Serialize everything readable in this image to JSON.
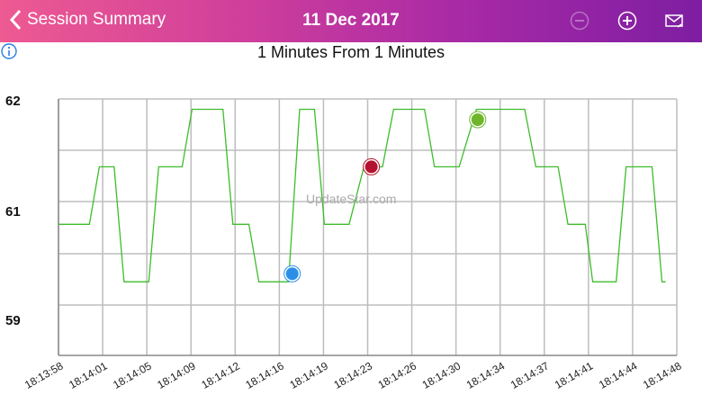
{
  "header": {
    "back_label": "Session Summary",
    "title": "11 Dec 2017",
    "icons": [
      "minus-circle-icon",
      "plus-circle-icon",
      "mail-export-icon"
    ]
  },
  "subtitle": "1 Minutes  From 1 Minutes",
  "watermark": "UpdateStar.com",
  "colors": {
    "line": "#3dbd2a",
    "grid": "#bdbdbd",
    "blue": "#2b8fe8",
    "red": "#b3132e",
    "green": "#6fb62c"
  },
  "chart_data": {
    "type": "line",
    "title": "1 Minutes  From 1 Minutes",
    "xlabel": "",
    "ylabel": "",
    "y_tick_labels": [
      "62",
      "61",
      "59"
    ],
    "x_tick_labels": [
      "18:13:58",
      "18:14:01",
      "18:14:05",
      "18:14:09",
      "18:14:12",
      "18:14:16",
      "18:14:19",
      "18:14:23",
      "18:14:26",
      "18:14:30",
      "18:14:34",
      "18:14:37",
      "18:14:41",
      "18:14:44",
      "18:14:48"
    ],
    "xlim": [
      0,
      50
    ],
    "ylim": [
      59.86,
      62.09
    ],
    "grid": true,
    "series": [
      {
        "name": "value",
        "x": [
          0,
          2.5,
          3.3,
          4.5,
          5.3,
          7.3,
          8.1,
          10.0,
          10.8,
          13.3,
          14.1,
          15.4,
          16.2,
          18.6,
          19.5,
          20.7,
          21.5,
          23.5,
          24.7,
          26.2,
          27.1,
          29.6,
          30.4,
          32.4,
          33.8,
          37.7,
          38.6,
          40.4,
          41.2,
          42.6,
          43.2,
          45.1,
          45.9,
          48.0,
          48.8,
          49.1
        ],
        "y": [
          61,
          61,
          61.5,
          61.5,
          60.5,
          60.5,
          61.5,
          61.5,
          62,
          62,
          61,
          61,
          60.5,
          60.5,
          62,
          62,
          61,
          61,
          61.5,
          61.5,
          62,
          62,
          61.5,
          61.5,
          62,
          62,
          61.5,
          61.5,
          61,
          61,
          60.5,
          60.5,
          61.5,
          61.5,
          60.5,
          60.5
        ]
      }
    ],
    "markers": [
      {
        "name": "min",
        "x": 18.9,
        "y": 60.57,
        "color": "#2b8fe8"
      },
      {
        "name": "current",
        "x": 25.3,
        "y": 61.5,
        "color": "#b3132e"
      },
      {
        "name": "max",
        "x": 33.9,
        "y": 61.91,
        "color": "#6fb62c"
      }
    ]
  }
}
